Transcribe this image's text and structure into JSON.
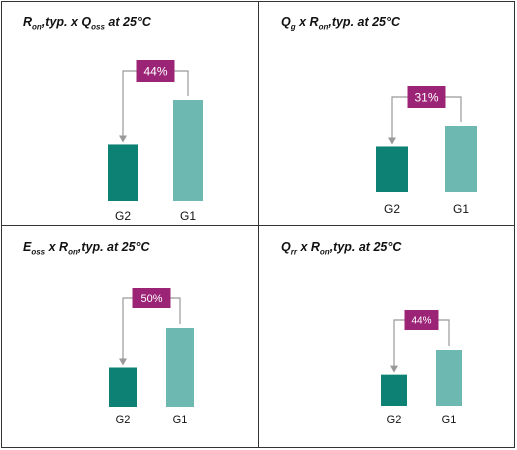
{
  "colors": {
    "g2": "#0d8174",
    "g1": "#6db8b0",
    "badge": "#9c2477",
    "arrow": "#999999"
  },
  "chart_data": [
    {
      "type": "bar",
      "title_main": "R",
      "title_sub1": "on",
      "title_mid": ",typ. x Q",
      "title_sub2": "oss",
      "title_end": " at 25°C",
      "categories": [
        "G2",
        "G1"
      ],
      "values": [
        56,
        100
      ],
      "badge": "44%"
    },
    {
      "type": "bar",
      "title_main": "Q",
      "title_sub1": "g",
      "title_mid": "  x R",
      "title_sub2": "on",
      "title_end": ",typ. at 25°C",
      "categories": [
        "G2",
        "G1"
      ],
      "values": [
        69,
        100
      ],
      "badge": "31%"
    },
    {
      "type": "bar",
      "title_main": "E",
      "title_sub1": "oss",
      "title_mid": " x R",
      "title_sub2": "on",
      "title_end": ",typ. at 25°C",
      "categories": [
        "G2",
        "G1"
      ],
      "values": [
        50,
        100
      ],
      "badge": "50%"
    },
    {
      "type": "bar",
      "title_main": "Q",
      "title_sub1": "rr",
      "title_mid": " x R",
      "title_sub2": "on",
      "title_end": ",typ. at 25°C",
      "categories": [
        "G2",
        "G1"
      ],
      "values": [
        56,
        100
      ],
      "badge": "44%"
    }
  ]
}
